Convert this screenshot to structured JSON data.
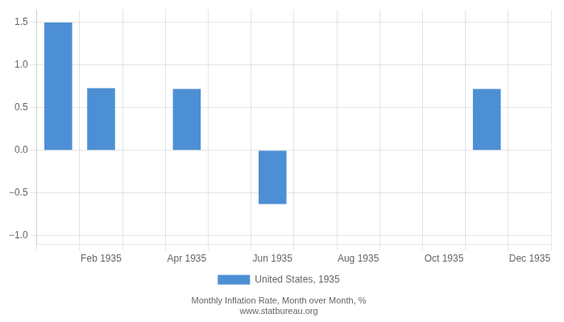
{
  "chart_data": {
    "type": "bar",
    "categories": [
      null,
      "Feb 1935",
      null,
      "Apr 1935",
      null,
      "Jun 1935",
      null,
      "Aug 1935",
      null,
      "Oct 1935",
      null,
      "Dec 1935"
    ],
    "series": [
      {
        "name": "United States, 1935",
        "color": "#4d8fd4",
        "values": [
          1.5,
          0.73,
          0.0,
          0.72,
          0.0,
          -0.63,
          0.0,
          0.0,
          0.0,
          0.0,
          0.72,
          0.0
        ]
      }
    ],
    "ylim": [
      -1.1,
      1.65
    ],
    "yticks": [
      {
        "value": -1.0,
        "label": "−1.0"
      },
      {
        "value": -0.5,
        "label": "−0.5"
      },
      {
        "value": 0.0,
        "label": "0.0"
      },
      {
        "value": 0.5,
        "label": "0.5"
      },
      {
        "value": 1.0,
        "label": "1.0"
      },
      {
        "value": 1.5,
        "label": "1.5"
      }
    ],
    "grid": true,
    "legend": "bottom",
    "annotations": [
      "Monthly Inflation Rate, Month over Month, %",
      "www.statbureau.org"
    ]
  }
}
